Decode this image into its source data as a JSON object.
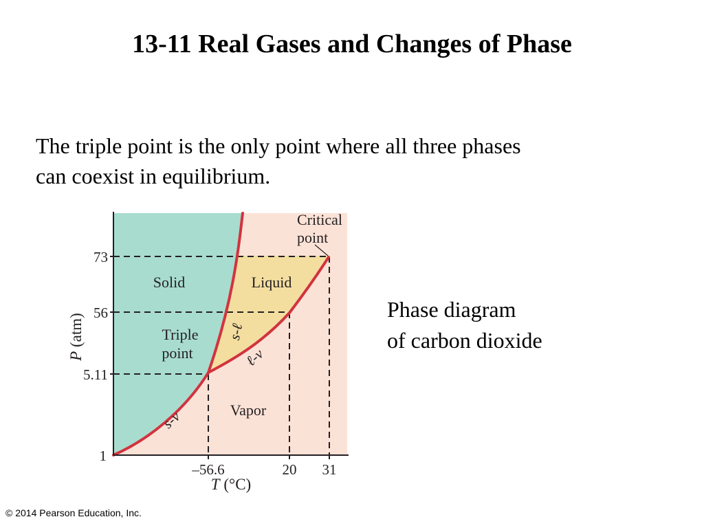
{
  "slide": {
    "title": "13-11 Real Gases and Changes of Phase",
    "body_line1": "The triple point is the only point where all three phases",
    "body_line2": "can coexist in equilibrium.",
    "caption_line1": "Phase diagram",
    "caption_line2": "of carbon dioxide",
    "copyright": "© 2014 Pearson Education, Inc."
  },
  "diagram": {
    "y_axis_label_var": "P",
    "y_axis_label_unit": " (atm)",
    "x_axis_label_var": "T",
    "x_axis_label_unit": " (°C)",
    "y_ticks": [
      "73",
      "56",
      "5.11",
      "1"
    ],
    "x_ticks": [
      "–56.6",
      "20",
      "31"
    ],
    "regions": {
      "solid": "Solid",
      "liquid": "Liquid",
      "vapor": "Vapor"
    },
    "curves": {
      "solid_liquid": "s-ℓ",
      "liquid_vapor": "ℓ-v",
      "solid_vapor": "s-v"
    },
    "annotations": {
      "triple_point_line1": "Triple",
      "triple_point_line2": "point",
      "critical_point_line1": "Critical",
      "critical_point_line2": "point"
    },
    "colors": {
      "solid_fill": "#a8dccf",
      "liquid_fill": "#f3dea0",
      "vapor_fill": "#fbe2d7",
      "curve": "#d2333e"
    }
  }
}
